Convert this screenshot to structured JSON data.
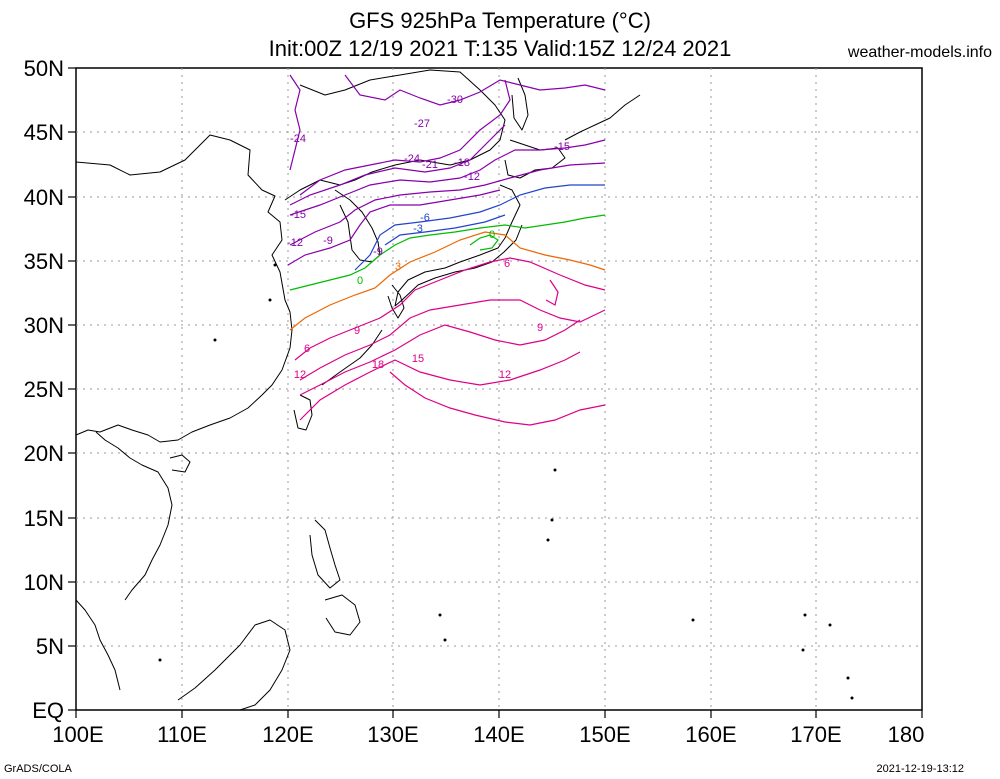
{
  "title_line1": "GFS 925hPa Temperature (°C)",
  "title_line2": "Init:00Z 12/19 2021 T:135 Valid:15Z 12/24 2021",
  "site": "weather-models.info",
  "footer_left": "GrADS/COLA",
  "footer_right": "2021-12-19-13:12",
  "axes": {
    "lat_labels": [
      "EQ",
      "5N",
      "10N",
      "15N",
      "20N",
      "25N",
      "30N",
      "35N",
      "40N",
      "45N",
      "50N"
    ],
    "lon_labels": [
      "100E",
      "110E",
      "120E",
      "130E",
      "140E",
      "150E",
      "160E",
      "170E",
      "180"
    ]
  },
  "contours": [
    {
      "id": "c1",
      "value": "-30",
      "color": "#8800aa"
    },
    {
      "id": "c2",
      "value": "-27",
      "color": "#8800aa"
    },
    {
      "id": "c3",
      "value": "-24",
      "color": "#8800aa"
    },
    {
      "id": "c4",
      "value": "-24",
      "color": "#8800aa"
    },
    {
      "id": "c5",
      "value": "-21",
      "color": "#8800aa"
    },
    {
      "id": "c6",
      "value": "-18",
      "color": "#8800aa"
    },
    {
      "id": "c7",
      "value": "-15",
      "color": "#8800aa"
    },
    {
      "id": "c8",
      "value": "-15",
      "color": "#8800aa"
    },
    {
      "id": "c9",
      "value": "-12",
      "color": "#8800aa"
    },
    {
      "id": "c10",
      "value": "-12",
      "color": "#8800aa"
    },
    {
      "id": "c11",
      "value": "-9",
      "color": "#8800aa"
    },
    {
      "id": "c12",
      "value": "-9",
      "color": "#8800aa"
    },
    {
      "id": "c13",
      "value": "-6",
      "color": "#2244cc"
    },
    {
      "id": "c14",
      "value": "-3",
      "color": "#2244cc"
    },
    {
      "id": "c15",
      "value": "0",
      "color": "#00bb00"
    },
    {
      "id": "c16",
      "value": "0",
      "color": "#00bb00"
    },
    {
      "id": "c17",
      "value": "3",
      "color": "#ee6600"
    },
    {
      "id": "c18",
      "value": "6",
      "color": "#dd0088"
    },
    {
      "id": "c19",
      "value": "6",
      "color": "#dd0088"
    },
    {
      "id": "c20",
      "value": "9",
      "color": "#dd0088"
    },
    {
      "id": "c21",
      "value": "9",
      "color": "#dd0088"
    },
    {
      "id": "c22",
      "value": "12",
      "color": "#dd0088"
    },
    {
      "id": "c23",
      "value": "12",
      "color": "#dd0088"
    },
    {
      "id": "c24",
      "value": "15",
      "color": "#dd0088"
    },
    {
      "id": "c25",
      "value": "18",
      "color": "#dd0088"
    }
  ]
}
